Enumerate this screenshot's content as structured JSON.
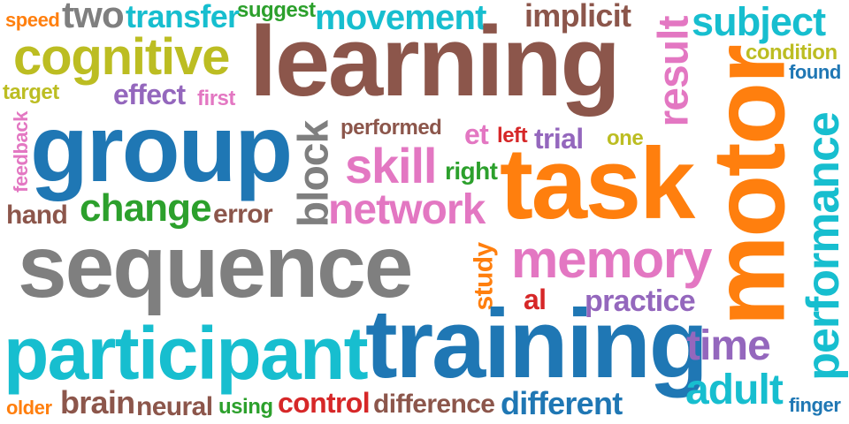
{
  "word_cloud": {
    "words": [
      {
        "key": "speed",
        "text": "speed",
        "color": "#ff7f0e",
        "rotation": 0
      },
      {
        "key": "two",
        "text": "two",
        "color": "#7f7f7f",
        "rotation": 0
      },
      {
        "key": "transfer",
        "text": "transfer",
        "color": "#17becf",
        "rotation": 0
      },
      {
        "key": "suggest",
        "text": "suggest",
        "color": "#2ca02c",
        "rotation": 0
      },
      {
        "key": "movement",
        "text": "movement",
        "color": "#17becf",
        "rotation": 0
      },
      {
        "key": "implicit",
        "text": "implicit",
        "color": "#8c564b",
        "rotation": 0
      },
      {
        "key": "subject",
        "text": "subject",
        "color": "#17becf",
        "rotation": 0
      },
      {
        "key": "result",
        "text": "result",
        "color": "#e377c2",
        "rotation": -90
      },
      {
        "key": "cognitive",
        "text": "cognitive",
        "color": "#bcbd22",
        "rotation": 0
      },
      {
        "key": "learning",
        "text": "learning",
        "color": "#8c564b",
        "rotation": 0
      },
      {
        "key": "condition",
        "text": "condition",
        "color": "#bcbd22",
        "rotation": 0
      },
      {
        "key": "found",
        "text": "found",
        "color": "#1f77b4",
        "rotation": 0
      },
      {
        "key": "target",
        "text": "target",
        "color": "#bcbd22",
        "rotation": 0
      },
      {
        "key": "effect",
        "text": "effect",
        "color": "#9467bd",
        "rotation": 0
      },
      {
        "key": "first",
        "text": "first",
        "color": "#e377c2",
        "rotation": 0
      },
      {
        "key": "feedback",
        "text": "feedback",
        "color": "#e377c2",
        "rotation": -90
      },
      {
        "key": "group",
        "text": "group",
        "color": "#1f77b4",
        "rotation": 0
      },
      {
        "key": "performed",
        "text": "performed",
        "color": "#8c564b",
        "rotation": 0
      },
      {
        "key": "et",
        "text": "et",
        "color": "#e377c2",
        "rotation": 0
      },
      {
        "key": "left",
        "text": "left",
        "color": "#d62728",
        "rotation": 0
      },
      {
        "key": "trial",
        "text": "trial",
        "color": "#9467bd",
        "rotation": 0
      },
      {
        "key": "one",
        "text": "one",
        "color": "#bcbd22",
        "rotation": 0
      },
      {
        "key": "block",
        "text": "block",
        "color": "#7f7f7f",
        "rotation": -90
      },
      {
        "key": "skill",
        "text": "skill",
        "color": "#e377c2",
        "rotation": 0
      },
      {
        "key": "right",
        "text": "right",
        "color": "#2ca02c",
        "rotation": 0
      },
      {
        "key": "task",
        "text": "task",
        "color": "#ff7f0e",
        "rotation": 0
      },
      {
        "key": "motor",
        "text": "motor",
        "color": "#ff7f0e",
        "rotation": -90
      },
      {
        "key": "performance",
        "text": "performance",
        "color": "#17becf",
        "rotation": -90
      },
      {
        "key": "hand",
        "text": "hand",
        "color": "#8c564b",
        "rotation": 0
      },
      {
        "key": "change",
        "text": "change",
        "color": "#2ca02c",
        "rotation": 0
      },
      {
        "key": "error",
        "text": "error",
        "color": "#8c564b",
        "rotation": 0
      },
      {
        "key": "network",
        "text": "network",
        "color": "#e377c2",
        "rotation": 0
      },
      {
        "key": "sequence",
        "text": "sequence",
        "color": "#7f7f7f",
        "rotation": 0
      },
      {
        "key": "study",
        "text": "study",
        "color": "#ff7f0e",
        "rotation": -90
      },
      {
        "key": "memory",
        "text": "memory",
        "color": "#e377c2",
        "rotation": 0
      },
      {
        "key": "al",
        "text": "al",
        "color": "#d62728",
        "rotation": 0
      },
      {
        "key": "practice",
        "text": "practice",
        "color": "#9467bd",
        "rotation": 0
      },
      {
        "key": "participant",
        "text": "participant",
        "color": "#17becf",
        "rotation": 0
      },
      {
        "key": "training",
        "text": "training",
        "color": "#1f77b4",
        "rotation": 0
      },
      {
        "key": "time",
        "text": "time",
        "color": "#9467bd",
        "rotation": 0
      },
      {
        "key": "adult",
        "text": "adult",
        "color": "#17becf",
        "rotation": 0
      },
      {
        "key": "older",
        "text": "older",
        "color": "#ff7f0e",
        "rotation": 0
      },
      {
        "key": "brain",
        "text": "brain",
        "color": "#8c564b",
        "rotation": 0
      },
      {
        "key": "neural",
        "text": "neural",
        "color": "#8c564b",
        "rotation": 0
      },
      {
        "key": "using",
        "text": "using",
        "color": "#2ca02c",
        "rotation": 0
      },
      {
        "key": "control",
        "text": "control",
        "color": "#d62728",
        "rotation": 0
      },
      {
        "key": "difference",
        "text": "difference",
        "color": "#8c564b",
        "rotation": 0
      },
      {
        "key": "different",
        "text": "different",
        "color": "#1f77b4",
        "rotation": 0
      },
      {
        "key": "finger",
        "text": "finger",
        "color": "#1f77b4",
        "rotation": 0
      }
    ]
  }
}
